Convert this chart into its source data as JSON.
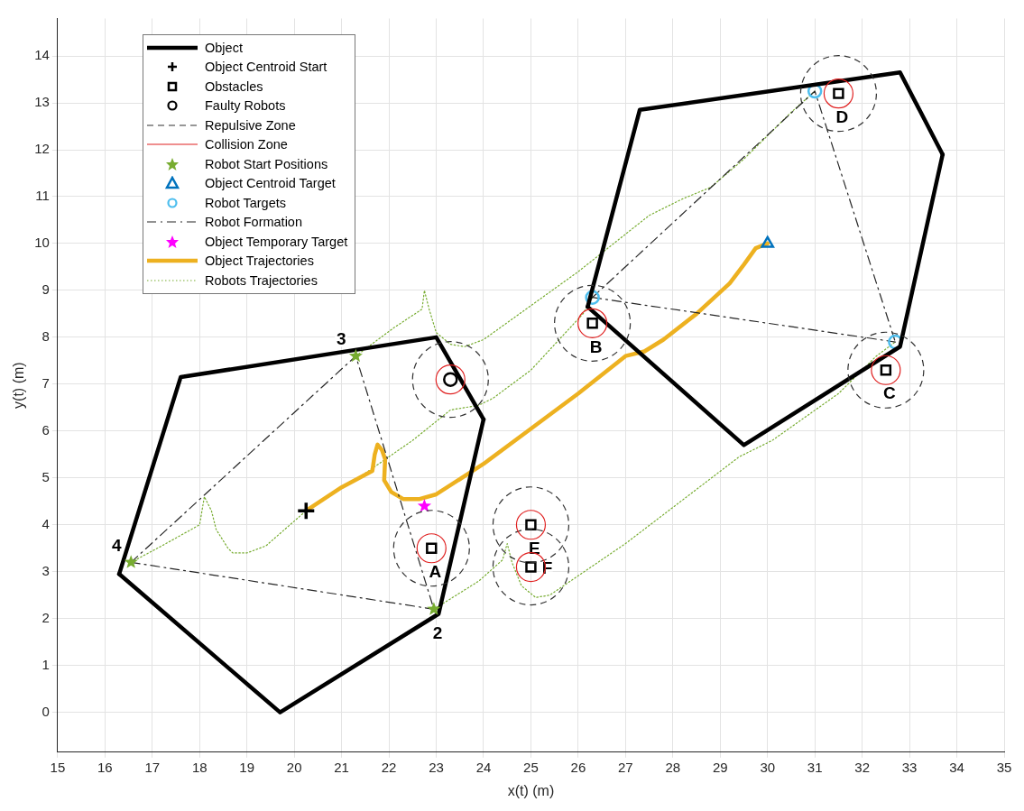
{
  "chart_data": {
    "type": "line",
    "xlabel": "x(t) (m)",
    "ylabel": "y(t) (m)",
    "xlim": [
      15,
      35
    ],
    "ylim": [
      -0.85,
      14.8
    ],
    "xticks": [
      15,
      16,
      17,
      18,
      19,
      20,
      21,
      22,
      23,
      24,
      25,
      26,
      27,
      28,
      29,
      30,
      31,
      32,
      33,
      34,
      35
    ],
    "yticks": [
      0,
      1,
      2,
      3,
      4,
      5,
      6,
      7,
      8,
      9,
      10,
      11,
      12,
      13,
      14
    ],
    "grid": true,
    "legend": "top left",
    "series": [
      {
        "name": "Object",
        "type": "line",
        "color": "#000000",
        "line_style": "solid",
        "x": [
          16.3,
          17.6,
          23,
          24
        ],
        "values": [
          2.95,
          7.15,
          8,
          6.25
        ]
      },
      {
        "type": "line",
        "color": "#000000",
        "line_style": "solid",
        "x": [
          16.3,
          19.7,
          23.05,
          24
        ],
        "values": [
          2.95,
          0,
          2.1,
          6.25
        ]
      },
      {
        "type": "line",
        "color": "#000000",
        "line_style": "solid",
        "x": [
          26.2,
          27.3,
          32.8,
          33.7
        ],
        "values": [
          8.65,
          12.85,
          13.65,
          11.9
        ]
      },
      {
        "type": "line",
        "color": "#000000",
        "line_style": "solid",
        "x": [
          26.2,
          29.5,
          32.8,
          33.7
        ],
        "values": [
          8.65,
          5.7,
          7.8,
          11.9
        ]
      },
      {
        "name": "Object Centroid Start",
        "type": "scatter",
        "color": "#000000",
        "marker": "cross",
        "x": [
          20.25
        ],
        "values": [
          4.3
        ]
      },
      {
        "name": "Obstacles",
        "type": "scatter",
        "color": "#000000",
        "marker": "square",
        "x": [
          22.9,
          26.3,
          32.5,
          31.5,
          25,
          25
        ],
        "values": [
          3.5,
          8.3,
          7.3,
          13.2,
          4,
          3.1
        ]
      },
      {
        "name": "Faulty Robots",
        "type": "scatter",
        "color": "#000000",
        "marker": "circle",
        "x": [
          23.3
        ],
        "values": [
          7.1
        ]
      },
      {
        "name": "Repulsive Zone",
        "type": "line",
        "color": "#303030",
        "line_style": "dashed"
      },
      {
        "name": "Collision Zone",
        "type": "line",
        "color": "#e02020"
      },
      {
        "name": "Robot Start Positions",
        "type": "scatter",
        "color": "#77ac30",
        "marker": "star",
        "x": [
          21.3,
          22.95,
          16.55
        ],
        "values": [
          7.6,
          2.2,
          3.2
        ]
      },
      {
        "name": "Object Centroid Target",
        "type": "scatter",
        "color": "#0072bd",
        "marker": "triangle",
        "x": [
          30
        ],
        "values": [
          10
        ]
      },
      {
        "name": "Robot Targets",
        "type": "scatter",
        "color": "#4dbeee",
        "marker": "circle",
        "x": [
          26.3,
          32.7,
          31
        ],
        "values": [
          8.85,
          7.9,
          13.25
        ]
      },
      {
        "name": "Robot Formation",
        "type": "line",
        "color": "#262626",
        "line_style": "dashdot",
        "x": [
          16.55,
          21.3,
          22.95
        ],
        "values": [
          3.2,
          7.6,
          2.2
        ]
      },
      {
        "type": "line",
        "color": "#262626",
        "line_style": "dashdot",
        "x": [
          16.55,
          22.95
        ],
        "values": [
          3.2,
          2.2
        ]
      },
      {
        "type": "line",
        "color": "#262626",
        "line_style": "dashdot",
        "x": [
          26.3,
          31,
          32.7
        ],
        "values": [
          8.85,
          13.25,
          7.9
        ]
      },
      {
        "type": "line",
        "color": "#262626",
        "line_style": "dashdot",
        "x": [
          26.3,
          32.7
        ],
        "values": [
          8.85,
          7.9
        ]
      },
      {
        "name": "Object Temporary Target",
        "type": "scatter",
        "color": "#ff00ff",
        "marker": "star",
        "x": [
          22.75
        ],
        "values": [
          4.4
        ]
      },
      {
        "name": "Object Trajectories",
        "type": "line",
        "color": "#edb120",
        "line_style": "solid",
        "x": [
          20.25,
          21.0,
          21.65,
          21.7,
          21.76,
          21.85,
          21.92,
          21.9,
          22.05,
          22.3,
          22.65,
          23.0,
          24,
          25,
          26,
          27,
          27.4,
          27.8,
          28.5,
          29.2,
          29.5,
          29.75,
          30
        ],
        "values": [
          4.3,
          4.8,
          5.15,
          5.5,
          5.71,
          5.6,
          5.4,
          4.95,
          4.7,
          4.55,
          4.55,
          4.65,
          5.3,
          6.05,
          6.8,
          7.6,
          7.7,
          7.95,
          8.5,
          9.15,
          9.55,
          9.9,
          10
        ]
      },
      {
        "name": "Robots Trajectories",
        "type": "line",
        "color": "#77ac30",
        "line_style": "dotted",
        "x": [
          16.55,
          17.2,
          18.0,
          18.1,
          18.25,
          18.35,
          18.6,
          18.7,
          19.0,
          19.4,
          20.25,
          21.5,
          22.5,
          23.3,
          23.9,
          24.2,
          25,
          26.1,
          26.3
        ],
        "values": [
          3.2,
          3.55,
          4.0,
          4.6,
          4.3,
          3.9,
          3.5,
          3.4,
          3.4,
          3.55,
          4.3,
          5.1,
          5.8,
          6.45,
          6.55,
          6.7,
          7.3,
          8.5,
          8.85
        ]
      },
      {
        "type": "line",
        "color": "#77ac30",
        "line_style": "dotted",
        "x": [
          21.3,
          22.1,
          22.7,
          22.75,
          22.85,
          23.0,
          23.3,
          23.6,
          24.0,
          26,
          27.5,
          28.2,
          28.8,
          29.5,
          30.5,
          31
        ],
        "values": [
          7.6,
          8.2,
          8.6,
          9.0,
          8.6,
          8.1,
          7.85,
          7.8,
          7.95,
          9.4,
          10.6,
          10.95,
          11.2,
          11.8,
          12.8,
          13.25
        ]
      },
      {
        "type": "line",
        "color": "#77ac30",
        "line_style": "dotted",
        "x": [
          22.95,
          23.9,
          24.4,
          24.5,
          24.6,
          24.8,
          25.1,
          25.4,
          27,
          29.4,
          30.1,
          31.5,
          32.3,
          32.7
        ],
        "values": [
          2.2,
          2.8,
          3.25,
          3.6,
          3.2,
          2.7,
          2.45,
          2.5,
          3.6,
          5.45,
          5.8,
          6.8,
          7.6,
          7.9
        ]
      }
    ],
    "annotations": [
      {
        "text": "A",
        "x": 22.9,
        "y": 3.5
      },
      {
        "text": "B",
        "x": 26.3,
        "y": 8.3
      },
      {
        "text": "C",
        "x": 32.5,
        "y": 7.3
      },
      {
        "text": "D",
        "x": 31.5,
        "y": 13.2
      },
      {
        "text": "E",
        "x": 25,
        "y": 4
      },
      {
        "text": "F",
        "x": 25,
        "y": 3.1
      },
      {
        "text": "3",
        "x": 21.3,
        "y": 7.6
      },
      {
        "text": "2",
        "x": 22.95,
        "y": 2.2
      },
      {
        "text": "4",
        "x": 16.55,
        "y": 3.2
      }
    ]
  }
}
